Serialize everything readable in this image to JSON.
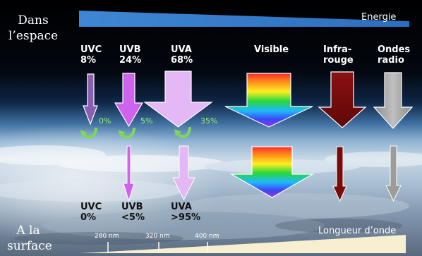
{
  "titles": {
    "space": [
      "Dans",
      "l’espace"
    ],
    "surface": [
      "A la",
      "surface"
    ]
  },
  "energy_label": "Energie",
  "wavelength_label": "Longueur d’onde",
  "ticks": [
    "280 nm",
    "320 nm",
    "400 nm"
  ],
  "space_labels": {
    "uvc": [
      "UVC",
      "8%"
    ],
    "uvb": [
      "UVB",
      "24%"
    ],
    "uva": [
      "UVA",
      "68%"
    ],
    "visible": [
      "Visible"
    ],
    "infra": [
      "Infra-",
      "rouge"
    ],
    "radio": [
      "Ondes",
      "radio"
    ]
  },
  "absorbed": {
    "uvc": "0%",
    "uvb": "5%",
    "uva": "35%"
  },
  "surface_labels": {
    "uvc": [
      "UVC",
      "0%"
    ],
    "uvb": [
      "UVB",
      "<5%"
    ],
    "uva": [
      "UVA",
      ">95%"
    ]
  },
  "colors": {
    "energy_wedge": "#3f86d6",
    "wavelength_wedge": "#f7efcf",
    "uvc": "#8a5fb1",
    "uvb": "#cf63ee",
    "uva": "#e4b7f5",
    "infra": "#7a0b0b",
    "radio": "#9c9c9c",
    "absorption_arrow": "#7ed957"
  }
}
